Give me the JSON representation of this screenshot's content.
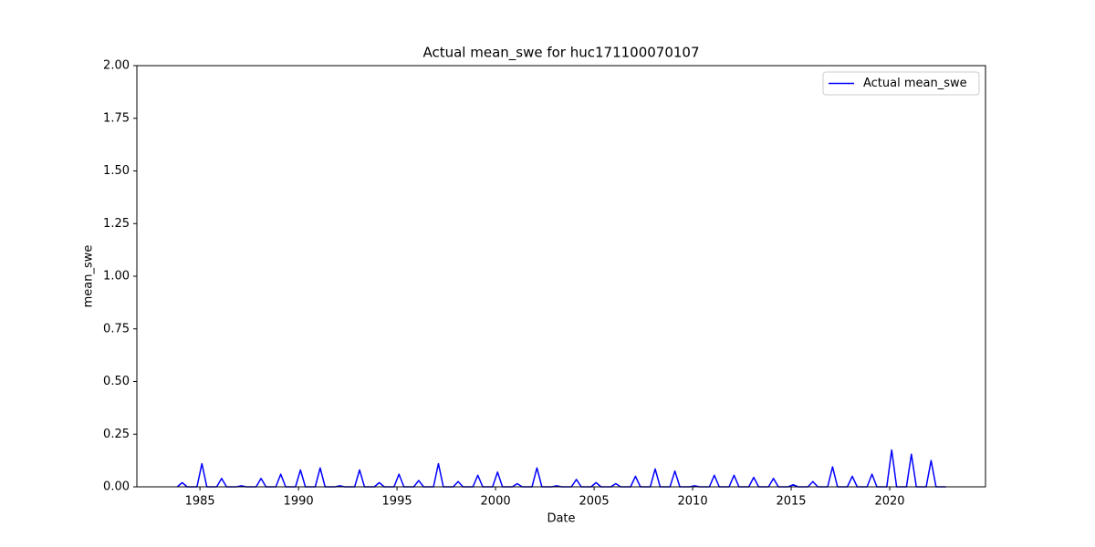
{
  "chart_data": {
    "type": "line",
    "title": "Actual mean_swe for huc171100070107",
    "xlabel": "Date",
    "ylabel": "mean_swe",
    "legend": "upper right",
    "grid": false,
    "xlim": [
      1981.8,
      2024.86
    ],
    "xticks": [
      1985,
      1990,
      1995,
      2000,
      2005,
      2010,
      2015,
      2020
    ],
    "ylim": [
      0,
      2
    ],
    "yticks": [
      {
        "value": 0,
        "label": "0.00"
      },
      {
        "value": 0.25,
        "label": "0.25"
      },
      {
        "value": 0.5,
        "label": "0.50"
      },
      {
        "value": 0.75,
        "label": "0.75"
      },
      {
        "value": 1,
        "label": "1.00"
      },
      {
        "value": 1.25,
        "label": "1.25"
      },
      {
        "value": 1.5,
        "label": "1.50"
      },
      {
        "value": 1.75,
        "label": "1.75"
      },
      {
        "value": 2,
        "label": "2.00"
      }
    ],
    "x": [
      1983.85,
      1984.1,
      1984.35,
      1984.85,
      1985.1,
      1985.35,
      1985.85,
      1986.1,
      1986.35,
      1986.85,
      1987.1,
      1987.35,
      1987.85,
      1988.1,
      1988.35,
      1988.85,
      1989.1,
      1989.35,
      1989.85,
      1990.1,
      1990.35,
      1990.85,
      1991.1,
      1991.35,
      1991.85,
      1992.1,
      1992.35,
      1992.85,
      1993.1,
      1993.35,
      1993.85,
      1994.1,
      1994.35,
      1994.85,
      1995.1,
      1995.35,
      1995.85,
      1996.1,
      1996.35,
      1996.85,
      1997.1,
      1997.35,
      1997.85,
      1998.1,
      1998.35,
      1998.85,
      1999.1,
      1999.35,
      1999.85,
      2000.1,
      2000.35,
      2000.85,
      2001.1,
      2001.35,
      2001.85,
      2002.1,
      2002.35,
      2002.85,
      2003.1,
      2003.35,
      2003.85,
      2004.1,
      2004.35,
      2004.85,
      2005.1,
      2005.35,
      2005.85,
      2006.1,
      2006.35,
      2006.85,
      2007.1,
      2007.35,
      2007.85,
      2008.1,
      2008.35,
      2008.85,
      2009.1,
      2009.35,
      2009.85,
      2010.1,
      2010.35,
      2010.85,
      2011.1,
      2011.35,
      2011.85,
      2012.1,
      2012.35,
      2012.85,
      2013.1,
      2013.35,
      2013.85,
      2014.1,
      2014.35,
      2014.85,
      2015.1,
      2015.35,
      2015.85,
      2016.1,
      2016.35,
      2016.85,
      2017.1,
      2017.35,
      2017.85,
      2018.1,
      2018.35,
      2018.85,
      2019.1,
      2019.35,
      2019.85,
      2020.1,
      2020.35,
      2020.85,
      2021.1,
      2021.35,
      2021.85,
      2022.1,
      2022.35,
      2022.85
    ],
    "series": [
      {
        "name": "Actual mean_swe",
        "color": "#0000ff",
        "values": [
          0,
          0.02,
          0,
          0,
          0.11,
          0,
          0,
          0.04,
          0,
          0,
          0.005,
          0,
          0,
          0.04,
          0,
          0,
          0.06,
          0,
          0,
          0.08,
          0,
          0,
          0.09,
          0,
          0,
          0.005,
          0,
          0,
          0.08,
          0,
          0,
          0.02,
          0,
          0,
          0.06,
          0,
          0,
          0.03,
          0,
          0,
          0.11,
          0,
          0,
          0.025,
          0,
          0,
          0.055,
          0,
          0,
          0.07,
          0,
          0,
          0.015,
          0,
          0,
          0.09,
          0,
          0,
          0.005,
          0,
          0,
          0.035,
          0,
          0,
          0.02,
          0,
          0,
          0.015,
          0,
          0,
          0.05,
          0,
          0,
          0.085,
          0,
          0,
          0.075,
          0,
          0,
          0.005,
          0,
          0,
          0.055,
          0,
          0,
          0.055,
          0,
          0,
          0.045,
          0,
          0,
          0.04,
          0,
          0,
          0.01,
          0,
          0,
          0.025,
          0,
          0,
          0.095,
          0,
          0,
          0.05,
          0,
          0,
          0.06,
          0,
          0,
          0.175,
          0,
          0,
          0.155,
          0,
          0,
          0.125,
          0,
          0
        ]
      }
    ]
  }
}
